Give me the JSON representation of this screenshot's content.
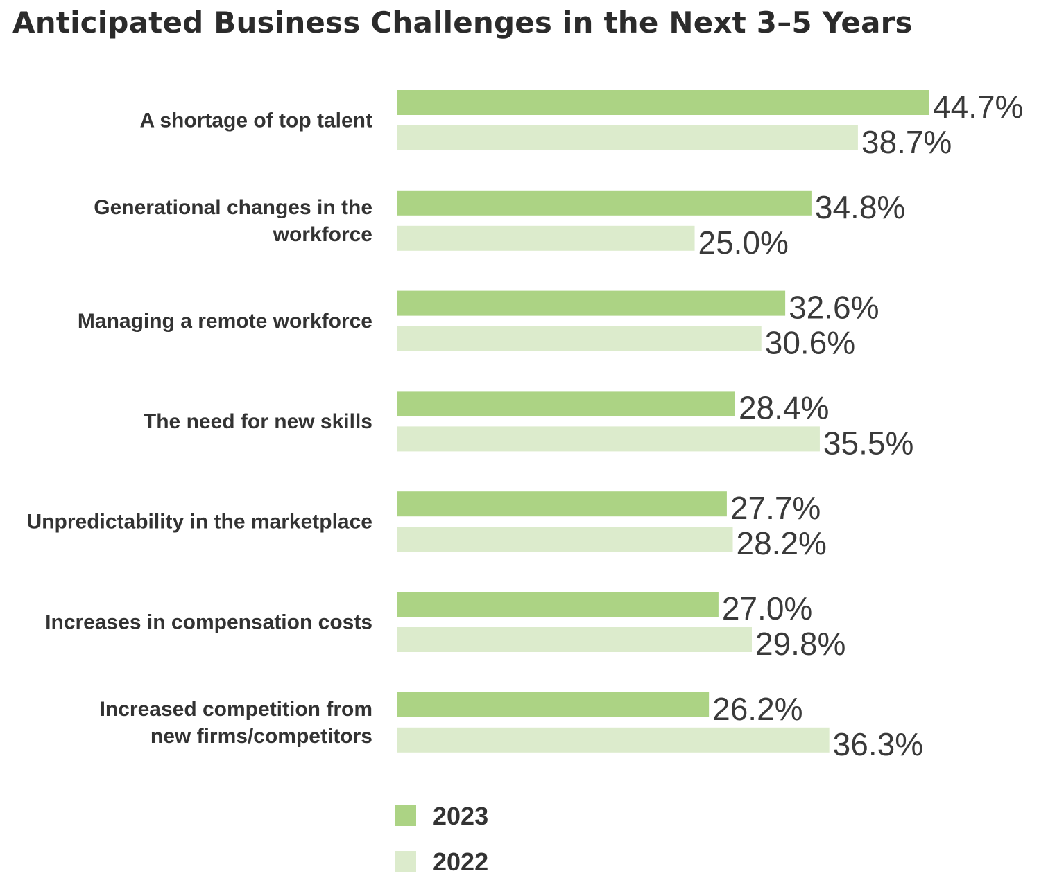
{
  "chart_data": {
    "type": "bar",
    "orientation": "horizontal",
    "title": "Anticipated Business Challenges in the Next 3–5 Years",
    "categories": [
      "A shortage of top talent",
      "Generational changes in the workforce",
      "Managing a remote workforce",
      "The need for new skills",
      "Unpredictability in the marketplace",
      "Increases in compensation costs",
      "Increased competition from new firms/competitors"
    ],
    "category_lines": [
      [
        "A shortage of top talent"
      ],
      [
        "Generational changes in the",
        "workforce"
      ],
      [
        "Managing a remote workforce"
      ],
      [
        "The need for new skills"
      ],
      [
        "Unpredictability in the marketplace"
      ],
      [
        "Increases in compensation costs"
      ],
      [
        "Increased competition from",
        "new firms/competitors"
      ]
    ],
    "series": [
      {
        "name": "2023",
        "color": "#acd384",
        "values": [
          44.7,
          34.8,
          32.6,
          28.4,
          27.7,
          27.0,
          26.2
        ]
      },
      {
        "name": "2022",
        "color": "#dcebcc",
        "values": [
          38.7,
          25.0,
          30.6,
          35.5,
          28.2,
          29.8,
          36.3
        ]
      }
    ],
    "value_suffix": "%",
    "xlim": [
      0,
      44.7
    ],
    "grid": false,
    "legend_position": "bottom"
  }
}
